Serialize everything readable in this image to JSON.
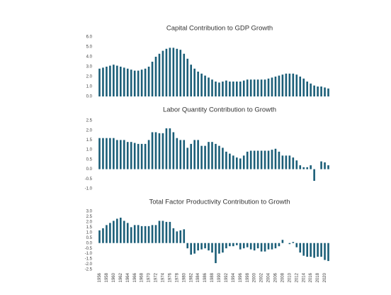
{
  "chart_data": [
    {
      "type": "bar",
      "title": "Capital Contribution to GDP Growth",
      "color": "#1b5e78",
      "values": [
        2.8,
        2.9,
        3.0,
        3.1,
        3.2,
        3.1,
        3.0,
        2.9,
        2.8,
        2.7,
        2.6,
        2.6,
        2.7,
        2.8,
        3.0,
        3.5,
        4.0,
        4.3,
        4.6,
        4.8,
        4.9,
        4.9,
        4.8,
        4.7,
        4.3,
        3.8,
        3.2,
        2.8,
        2.5,
        2.3,
        2.1,
        1.9,
        1.7,
        1.5,
        1.4,
        1.5,
        1.6,
        1.5,
        1.5,
        1.5,
        1.5,
        1.6,
        1.7,
        1.7,
        1.7,
        1.7,
        1.7,
        1.7,
        1.8,
        1.9,
        2.0,
        2.1,
        2.2,
        2.3,
        2.3,
        2.3,
        2.2,
        2.0,
        1.8,
        1.5,
        1.3,
        1.1,
        1.0,
        1.0,
        0.9,
        0.8
      ],
      "ylim": [
        0,
        6
      ],
      "yticks": [
        {
          "value": 0,
          "label": "0.0"
        },
        {
          "value": 1,
          "label": "1.0"
        },
        {
          "value": 2,
          "label": "2.0"
        },
        {
          "value": 3,
          "label": "3.0"
        },
        {
          "value": 4,
          "label": "4.0"
        },
        {
          "value": 5,
          "label": "5.0"
        },
        {
          "value": 6,
          "label": "6.0"
        }
      ]
    },
    {
      "type": "bar",
      "title": "Labor Quantity Contribution to Growth",
      "color": "#1b5e78",
      "values": [
        1.6,
        1.6,
        1.6,
        1.6,
        1.6,
        1.5,
        1.5,
        1.5,
        1.4,
        1.4,
        1.35,
        1.3,
        1.3,
        1.3,
        1.5,
        1.9,
        1.9,
        1.85,
        1.85,
        2.1,
        2.1,
        1.9,
        1.6,
        1.5,
        1.5,
        1.1,
        1.3,
        1.5,
        1.5,
        1.2,
        1.2,
        1.4,
        1.4,
        1.3,
        1.2,
        1.1,
        0.9,
        0.8,
        0.7,
        0.6,
        0.55,
        0.7,
        0.9,
        0.95,
        0.95,
        0.95,
        0.95,
        0.95,
        0.95,
        1.0,
        1.05,
        0.9,
        0.7,
        0.7,
        0.7,
        0.6,
        0.45,
        0.2,
        0.1,
        0.1,
        0.2,
        -0.6,
        0,
        0.4,
        0.35,
        0.2
      ],
      "ylim": [
        -1,
        2.5
      ],
      "yticks": [
        {
          "value": -1,
          "label": "-1.0"
        },
        -0.5,
        {
          "value": 0,
          "label": "0.0"
        },
        0.5,
        {
          "value": 1,
          "label": "1.0"
        },
        1.5,
        {
          "value": 2,
          "label": "2.0"
        },
        2.5
      ]
    },
    {
      "type": "bar",
      "title": "Total Factor Productivity Contribution to Growth",
      "color": "#1b5e78",
      "categories": [
        "1956",
        null,
        "1958",
        null,
        "1960",
        null,
        "1962",
        null,
        "1964",
        null,
        "1966",
        null,
        "1968",
        null,
        "1970",
        null,
        "1972",
        null,
        "1974",
        null,
        "1976",
        null,
        "1978",
        null,
        "1980",
        null,
        "1982",
        null,
        "1984",
        null,
        "1986",
        null,
        "1988",
        null,
        "1990",
        null,
        "1992",
        null,
        "1994",
        null,
        "1996",
        null,
        "1998",
        null,
        "2000",
        null,
        "2002",
        null,
        "2004",
        null,
        "2006",
        null,
        "2008",
        null,
        "2010",
        null,
        "2012",
        null,
        "2014",
        null,
        "2016",
        null,
        "2018",
        null,
        "2020",
        null
      ],
      "values": [
        1.2,
        1.4,
        1.7,
        1.9,
        2.1,
        2.3,
        2.4,
        2.1,
        1.9,
        1.5,
        1.7,
        1.7,
        1.6,
        1.6,
        1.6,
        1.7,
        1.7,
        2.1,
        2.1,
        2.0,
        2.0,
        1.4,
        1.1,
        1.2,
        1.3,
        -0.5,
        -1.1,
        -1.0,
        -0.7,
        -0.6,
        -0.5,
        -0.7,
        -0.9,
        -1.9,
        -1.0,
        -0.9,
        -0.5,
        -0.3,
        -0.3,
        -0.2,
        -0.6,
        -0.5,
        -0.4,
        -0.6,
        -0.7,
        -0.5,
        -0.8,
        -0.8,
        -0.6,
        -0.6,
        -0.5,
        -0.3,
        0.3,
        0.0,
        -0.1,
        0.1,
        -0.4,
        -0.9,
        -1.2,
        -1.3,
        -1.3,
        -1.4,
        -1.3,
        -1.3,
        -1.6,
        -1.7
      ],
      "ylim": [
        -2.5,
        3
      ],
      "yticks": [
        -2.5,
        {
          "value": -2,
          "label": "-2.0"
        },
        -1.5,
        {
          "value": -1,
          "label": "-1.0"
        },
        -0.5,
        {
          "value": 0,
          "label": "0.0"
        },
        0.5,
        {
          "value": 1,
          "label": "1.0"
        },
        1.5,
        {
          "value": 2,
          "label": "2.0"
        },
        2.5,
        {
          "value": 3,
          "label": "3.0"
        }
      ]
    }
  ]
}
